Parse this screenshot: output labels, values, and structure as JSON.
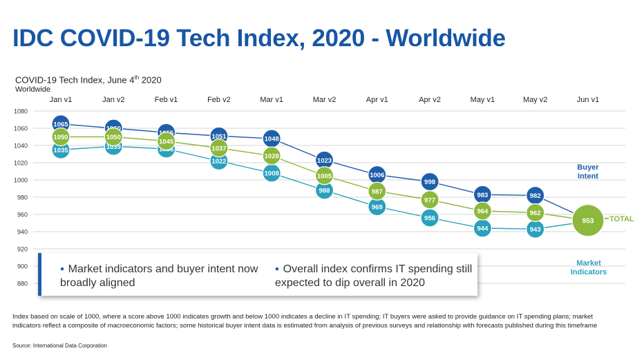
{
  "title": "IDC COVID-19 Tech Index, 2020 - Worldwide",
  "subtitle_main": "COVID-19 Tech Index, June 4",
  "subtitle_sup": "th",
  "subtitle_year": " 2020",
  "subtitle_region": "Worldwide",
  "colors": {
    "buyer_intent": "#1f5ea8",
    "total": "#8cb83c",
    "market": "#2aa0bd",
    "title": "#1756a4"
  },
  "chart_data": {
    "type": "line",
    "categories": [
      "Jan v1",
      "Jan v2",
      "Feb v1",
      "Feb v2",
      "Mar v1",
      "Mar v2",
      "Apr v1",
      "Apr v2",
      "May v1",
      "May v2",
      "Jun v1"
    ],
    "yticks": [
      880,
      900,
      920,
      940,
      960,
      980,
      1000,
      1020,
      1040,
      1060,
      1080
    ],
    "ylim": [
      880,
      1080
    ],
    "grid": true,
    "series": [
      {
        "name": "Buyer Intent",
        "label_lines": [
          "Buyer",
          "Intent"
        ],
        "color": "#1f5ea8",
        "values": [
          1065,
          1060,
          1055,
          1051,
          1048,
          1023,
          1006,
          998,
          983,
          982,
          954
        ]
      },
      {
        "name": "Market Indicators",
        "label_lines": [
          "Market",
          "Indicators"
        ],
        "color": "#2aa0bd",
        "values": [
          1035,
          1039,
          1036,
          1022,
          1008,
          988,
          969,
          956,
          944,
          943,
          952
        ]
      },
      {
        "name": "TOTAL",
        "label_lines": [
          "TOTAL"
        ],
        "color": "#8cb83c",
        "values": [
          1050,
          1050,
          1045,
          1037,
          1028,
          1005,
          987,
          977,
          964,
          962,
          953
        ]
      }
    ]
  },
  "callout": {
    "item1": "Market indicators and buyer intent now broadly aligned",
    "item2": "Overall index confirms IT spending still expected to dip overall in 2020"
  },
  "footnote": "Index based on scale of 1000, where a score above 1000 indicates growth and below 1000 indicates a decline in IT spending; IT buyers were asked to provide guidance on IT spending plans; market indicators reflect a composite of macroeconomic factors; some historical buyer intent data is estimated from analysis of previous surveys and relationship with forecasts published during this timeframe",
  "source": "Source: International Data Corporation"
}
